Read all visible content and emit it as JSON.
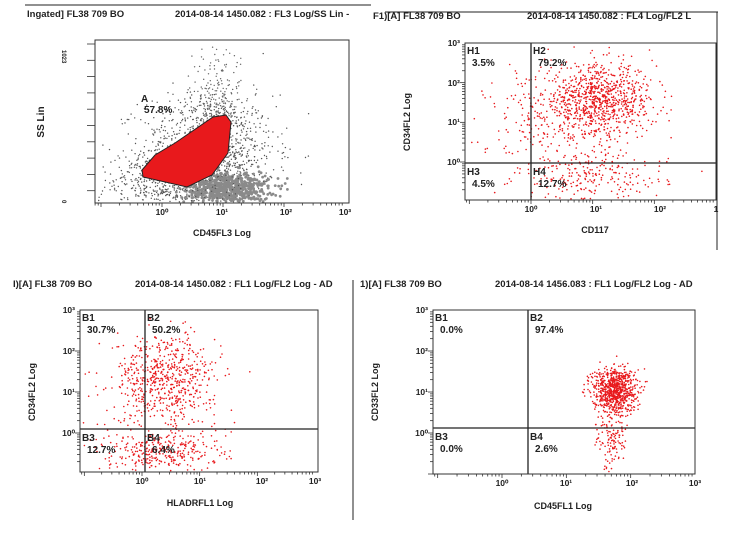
{
  "chart_data": [
    {
      "type": "scatter",
      "header_left": "Ingated] FL38 709 BO",
      "header_right": "2014-08-14 1450.082 : FL3 Log/SS Lin -",
      "xlabel": "CD45FL3 Log",
      "ylabel": "SS Lin",
      "x_scale": "log",
      "xlim": [
        0.1,
        1000
      ],
      "x_ticks": [
        "10⁰",
        "10¹",
        "10²",
        "10³"
      ],
      "y_scale": "linear",
      "ylim": [
        0,
        1023
      ],
      "y_ticks": [
        "1023",
        "0"
      ],
      "gate": {
        "name": "A",
        "percent": "57.8%"
      },
      "colors": {
        "gate": "#e8191c",
        "events": "#555555",
        "dense": "#8a8a8a"
      }
    },
    {
      "type": "scatter",
      "header_left": "F1)[A] FL38 709 BO",
      "header_right": "2014-08-14 1450.082 : FL4 Log/FL2 L",
      "xlabel": "CD117",
      "ylabel": "CD34FL2 Log",
      "x_scale": "log",
      "y_scale": "log",
      "x_ticks": [
        "10⁰",
        "10¹",
        "10²",
        "1"
      ],
      "y_ticks": [
        "10³",
        "10²",
        "10¹",
        "10⁰"
      ],
      "quadrants": [
        {
          "name": "H1",
          "percent": "3.5%"
        },
        {
          "name": "H2",
          "percent": "79.2%"
        },
        {
          "name": "H3",
          "percent": "4.5%"
        },
        {
          "name": "H4",
          "percent": "12.7%"
        }
      ],
      "colors": {
        "events": "#e8191c"
      }
    },
    {
      "type": "scatter",
      "header_left": "I)[A] FL38 709 BO",
      "header_right": "2014-08-14 1450.082 : FL1 Log/FL2 Log - AD",
      "xlabel": "HLADRFL1 Log",
      "ylabel": "CD34FL2 Log",
      "x_scale": "log",
      "y_scale": "log",
      "x_ticks": [
        "10⁰",
        "10¹",
        "10²",
        "10³"
      ],
      "y_ticks": [
        "10³",
        "10²",
        "10¹",
        "10⁰"
      ],
      "quadrants": [
        {
          "name": "B1",
          "percent": "30.7%"
        },
        {
          "name": "B2",
          "percent": "50.2%"
        },
        {
          "name": "B3",
          "percent": "12.7%"
        },
        {
          "name": "B4",
          "percent": "6.4%"
        }
      ],
      "colors": {
        "events": "#e8191c"
      }
    },
    {
      "type": "scatter",
      "header_left": "1)[A] FL38 709 BO",
      "header_right": "2014-08-14 1456.083 : FL1 Log/FL2 Log - AD",
      "xlabel": "CD45FL1 Log",
      "ylabel": "CD33FL2 Log",
      "x_scale": "log",
      "y_scale": "log",
      "x_ticks": [
        "10⁰",
        "10¹",
        "10²",
        "10³"
      ],
      "y_ticks": [
        "10³",
        "10²",
        "10¹",
        "10⁰"
      ],
      "quadrants": [
        {
          "name": "B1",
          "percent": "0.0%"
        },
        {
          "name": "B2",
          "percent": "97.4%"
        },
        {
          "name": "B3",
          "percent": "0.0%"
        },
        {
          "name": "B4",
          "percent": "2.6%"
        }
      ],
      "colors": {
        "events": "#e8191c"
      }
    }
  ]
}
